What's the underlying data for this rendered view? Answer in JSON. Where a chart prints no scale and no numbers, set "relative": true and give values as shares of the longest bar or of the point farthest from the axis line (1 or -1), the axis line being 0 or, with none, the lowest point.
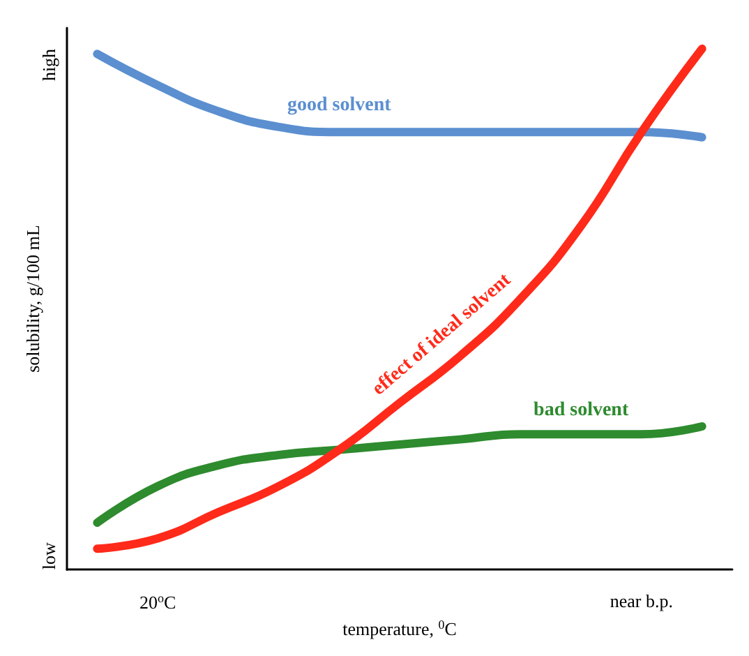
{
  "chart_data": {
    "type": "line",
    "relative": true,
    "xlabel": "temperature, $^{0}$C",
    "ylabel": "solubility, g/100 mL",
    "categories": [
      null,
      "20$^{o}$C",
      null,
      null,
      null,
      null,
      null,
      null,
      null,
      "near b.p.",
      null
    ],
    "annotations": [
      "low",
      "high"
    ],
    "series": [
      {
        "name": "good solvent",
        "color": "#5b8fd0",
        "values": [
          0.99,
          0.93,
          0.88,
          0.85,
          0.84,
          0.84,
          0.84,
          0.84,
          0.84,
          0.84,
          0.83
        ]
      },
      {
        "name": "bad solvent",
        "color": "#2e8b2e",
        "values": [
          0.09,
          0.16,
          0.2,
          0.22,
          0.23,
          0.24,
          0.25,
          0.26,
          0.26,
          0.26,
          0.275
        ]
      },
      {
        "name": "effect of ideal solvent",
        "color": "#ff2a1a",
        "values": [
          0.04,
          0.06,
          0.11,
          0.16,
          0.23,
          0.32,
          0.41,
          0.52,
          0.66,
          0.84,
          1
        ]
      }
    ],
    "grid": false,
    "legend": false,
    "marker": "none",
    "line_style": "solid"
  }
}
